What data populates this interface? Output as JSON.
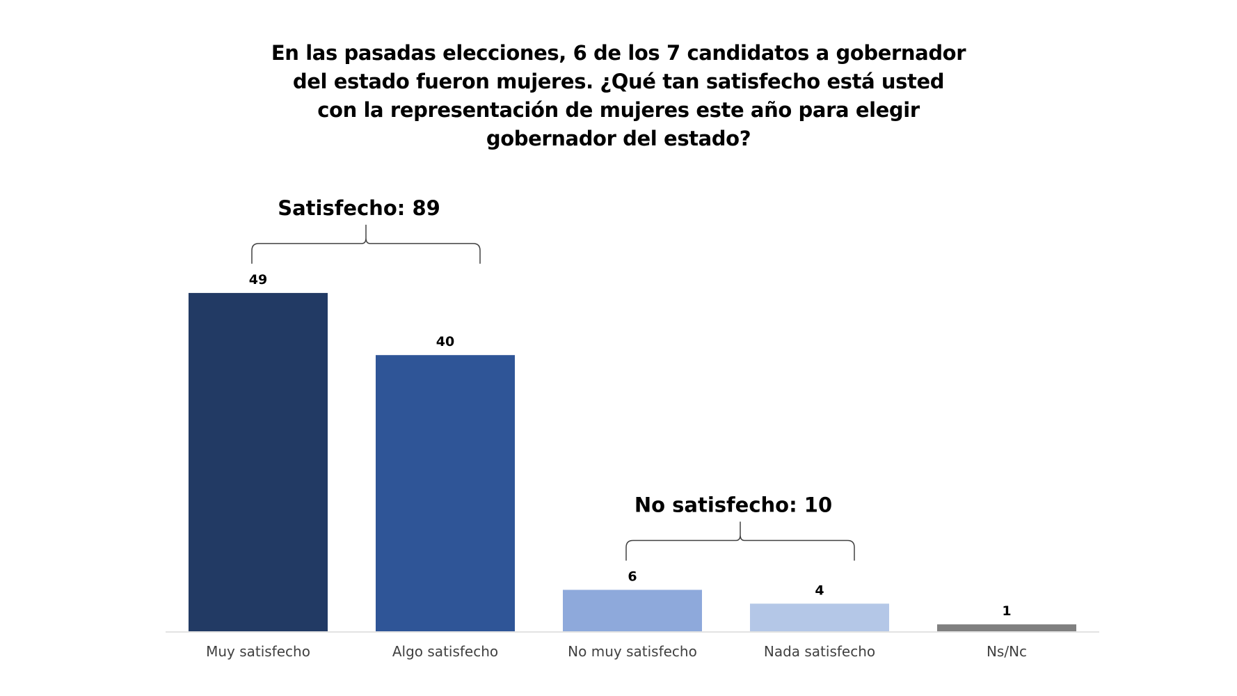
{
  "chart_data": {
    "type": "bar",
    "title": "En las pasadas elecciones, 6 de los 7 candidatos a gobernador del estado fueron mujeres. ¿Qué tan satisfecho está usted con la representación de mujeres este año para elegir gobernador del estado?",
    "categories": [
      "Muy satisfecho",
      "Algo satisfecho",
      "No muy satisfecho",
      "Nada satisfecho",
      "Ns/Nc"
    ],
    "values": [
      49,
      40,
      6,
      4,
      1
    ],
    "colors": [
      "#223A64",
      "#2F5597",
      "#8EA9DB",
      "#B4C7E7",
      "#808080"
    ],
    "ylim": [
      0,
      49
    ],
    "grid": false,
    "xlabel": "",
    "ylabel": "",
    "annotations": [
      {
        "label": "Satisfecho: 89",
        "spans": [
          "Muy satisfecho",
          "Algo satisfecho"
        ]
      },
      {
        "label": "No satisfecho: 10",
        "spans": [
          "No muy satisfecho",
          "Nada satisfecho"
        ]
      }
    ]
  }
}
